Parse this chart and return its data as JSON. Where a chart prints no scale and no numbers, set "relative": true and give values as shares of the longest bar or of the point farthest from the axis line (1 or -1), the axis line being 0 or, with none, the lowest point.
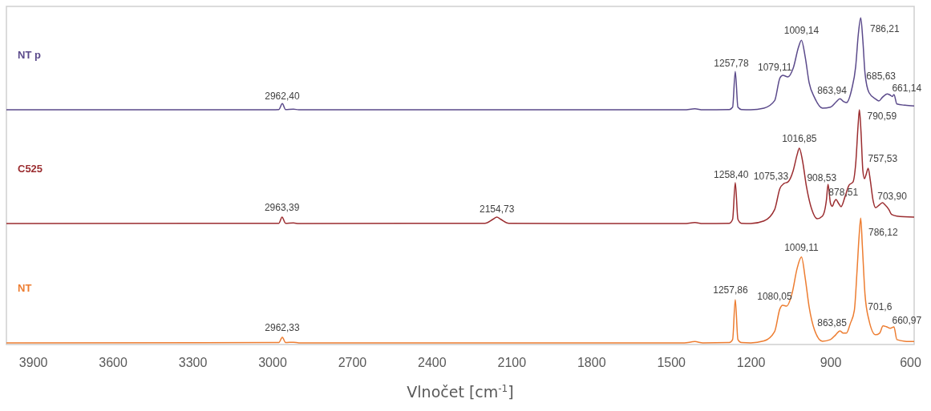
{
  "chart_data": {
    "type": "line",
    "relative": true,
    "xlabel": "Vlnočet [cm$^{-1}$]",
    "xlim": [
      4000,
      585
    ],
    "xticks": [
      3900,
      3600,
      3300,
      3000,
      2700,
      2400,
      2100,
      1800,
      1500,
      1200,
      900,
      600
    ],
    "grid": false,
    "marker": "none",
    "line_style": "solid",
    "series": [
      {
        "name": "NT p",
        "color": "#5b4a8b",
        "x": [
          4000,
          3000,
          2975,
          2962,
          2950,
          2920,
          2900,
          1450,
          1410,
          1380,
          1280,
          1268,
          1258,
          1248,
          1235,
          1200,
          1150,
          1110,
          1090,
          1079,
          1060,
          1040,
          1020,
          1009,
          995,
          980,
          960,
          930,
          900,
          880,
          864,
          850,
          840,
          820,
          805,
          795,
          786,
          778,
          770,
          755,
          730,
          718,
          705,
          686,
          675,
          667,
          661,
          650,
          620,
          585
        ],
        "values": [
          0.717,
          0.717,
          0.718,
          0.736,
          0.718,
          0.719,
          0.717,
          0.717,
          0.72,
          0.717,
          0.718,
          0.725,
          0.835,
          0.725,
          0.718,
          0.717,
          0.722,
          0.745,
          0.815,
          0.823,
          0.818,
          0.845,
          0.91,
          0.931,
          0.88,
          0.8,
          0.755,
          0.722,
          0.725,
          0.74,
          0.751,
          0.742,
          0.739,
          0.78,
          0.85,
          0.95,
          1,
          0.93,
          0.83,
          0.77,
          0.75,
          0.744,
          0.755,
          0.766,
          0.762,
          0.758,
          0.764,
          0.735,
          0.731,
          0.729
        ]
      },
      {
        "name": "C525",
        "color": "#9b2d30",
        "x": [
          4000,
          2975,
          2963,
          2950,
          2920,
          2900,
          2200,
          2170,
          2155,
          2140,
          2110,
          1450,
          1410,
          1380,
          1280,
          1268,
          1258,
          1248,
          1235,
          1200,
          1150,
          1110,
          1090,
          1075,
          1060,
          1040,
          1025,
          1017,
          1005,
          990,
          970,
          950,
          930,
          915,
          909,
          900,
          893,
          885,
          879,
          870,
          860,
          845,
          830,
          815,
          805,
          795,
          791,
          785,
          778,
          772,
          765,
          758,
          750,
          740,
          730,
          715,
          704,
          695,
          680,
          670,
          650,
          585
        ],
        "values": [
          0.367,
          0.368,
          0.387,
          0.368,
          0.369,
          0.367,
          0.368,
          0.38,
          0.387,
          0.38,
          0.368,
          0.367,
          0.37,
          0.367,
          0.368,
          0.38,
          0.493,
          0.38,
          0.368,
          0.367,
          0.375,
          0.41,
          0.475,
          0.49,
          0.495,
          0.53,
          0.58,
          0.599,
          0.56,
          0.48,
          0.41,
          0.382,
          0.39,
          0.44,
          0.488,
          0.43,
          0.42,
          0.435,
          0.441,
          0.43,
          0.419,
          0.45,
          0.485,
          0.495,
          0.55,
          0.68,
          0.717,
          0.65,
          0.53,
          0.505,
          0.52,
          0.537,
          0.5,
          0.44,
          0.416,
          0.425,
          0.431,
          0.425,
          0.41,
          0.395,
          0.39,
          0.387
        ]
      },
      {
        "name": "NT",
        "color": "#ed7d31",
        "x": [
          4000,
          2975,
          2962,
          2950,
          2920,
          2900,
          1450,
          1410,
          1380,
          1280,
          1268,
          1258,
          1248,
          1235,
          1200,
          1150,
          1110,
          1090,
          1080,
          1065,
          1045,
          1025,
          1009,
          995,
          980,
          960,
          930,
          900,
          880,
          864,
          852,
          840,
          825,
          810,
          800,
          792,
          786,
          780,
          770,
          755,
          730,
          715,
          702,
          690,
          675,
          661,
          650,
          620,
          585
        ],
        "values": [
          0,
          0.001,
          0.017,
          0.001,
          0.002,
          0,
          0,
          0.004,
          0,
          0.001,
          0.01,
          0.133,
          0.01,
          0.001,
          0,
          0.006,
          0.035,
          0.105,
          0.116,
          0.113,
          0.15,
          0.23,
          0.264,
          0.2,
          0.11,
          0.04,
          0.005,
          0.01,
          0.025,
          0.037,
          0.03,
          0.03,
          0.06,
          0.1,
          0.22,
          0.33,
          0.384,
          0.3,
          0.15,
          0.07,
          0.025,
          0.03,
          0.052,
          0.05,
          0.045,
          0.049,
          0.01,
          0.005,
          0.004
        ]
      }
    ],
    "annotations": [
      {
        "text": "2962,40",
        "x": 2962.4,
        "y": 0.736
      },
      {
        "text": "1257,78",
        "x": 1257.78,
        "y": 0.835
      },
      {
        "text": "1079,11",
        "x": 1079.11,
        "y": 0.823
      },
      {
        "text": "1009,14",
        "x": 1009.14,
        "y": 0.931
      },
      {
        "text": "863,94",
        "x": 863.94,
        "y": 0.751
      },
      {
        "text": "786,21",
        "x": 786.21,
        "y": 1
      },
      {
        "text": "685,63",
        "x": 685.63,
        "y": 0.766
      },
      {
        "text": "661,14",
        "x": 661.14,
        "y": 0.764
      },
      {
        "text": "2963,39",
        "x": 2963.39,
        "y": 0.387
      },
      {
        "text": "2154,73",
        "x": 2154.73,
        "y": 0.387
      },
      {
        "text": "1258,40",
        "x": 1258.4,
        "y": 0.493
      },
      {
        "text": "1075,33",
        "x": 1075.33,
        "y": 0.49
      },
      {
        "text": "1016,85",
        "x": 1016.85,
        "y": 0.599
      },
      {
        "text": "908,53",
        "x": 908.53,
        "y": 0.488
      },
      {
        "text": "878,51",
        "x": 878.51,
        "y": 0.441
      },
      {
        "text": "790,59",
        "x": 790.59,
        "y": 0.717
      },
      {
        "text": "757,53",
        "x": 757.53,
        "y": 0.537
      },
      {
        "text": "703,90",
        "x": 703.9,
        "y": 0.431
      },
      {
        "text": "2962,33",
        "x": 2962.33,
        "y": 0.017
      },
      {
        "text": "1257,86",
        "x": 1257.86,
        "y": 0.133
      },
      {
        "text": "1080,05",
        "x": 1080.05,
        "y": 0.116
      },
      {
        "text": "1009,11",
        "x": 1009.11,
        "y": 0.264
      },
      {
        "text": "863,85",
        "x": 863.85,
        "y": 0.037
      },
      {
        "text": "786,12",
        "x": 786.12,
        "y": 0.384
      },
      {
        "text": "701,6",
        "x": 701.6,
        "y": 0.052
      },
      {
        "text": "660,97",
        "x": 660.97,
        "y": 0.049
      }
    ]
  }
}
